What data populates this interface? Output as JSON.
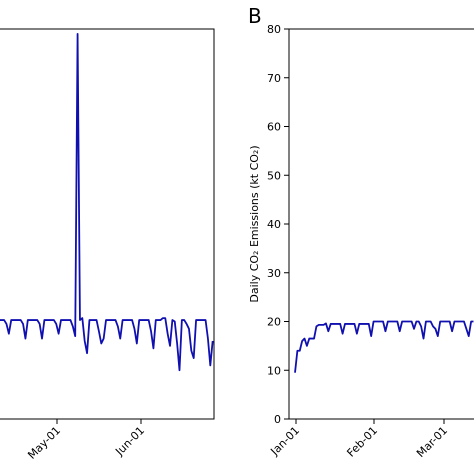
{
  "chart_data": [
    {
      "type": "line",
      "panel_label": "",
      "ylabel": "",
      "x_ticks": [
        "May-01",
        "Jun-01"
      ],
      "ylim": [
        0,
        80
      ],
      "grid": false,
      "color": "#1010b0",
      "series": [
        {
          "values": [
            20.3,
            20.3,
            20.3,
            20.3,
            19.5,
            17.5,
            20.3,
            20.3,
            20.3,
            20.3,
            20.3,
            19.5,
            16.5,
            20.3,
            20.3,
            20.3,
            20.3,
            20.3,
            19.5,
            16.5,
            20.3,
            20.3,
            20.3,
            20.3,
            20.3,
            19.5,
            17.5,
            20.3,
            20.3,
            20.3,
            20.3,
            20.3,
            19.0,
            17.0,
            79.0,
            20.3,
            20.7,
            16.0,
            13.5,
            20.3,
            20.3,
            20.3,
            20.3,
            18.0,
            15.5,
            16.5,
            20.3,
            20.3,
            20.3,
            20.3,
            20.3,
            19.0,
            16.5,
            20.3,
            20.3,
            20.3,
            20.3,
            20.3,
            18.5,
            15.5,
            20.3,
            20.3,
            20.3,
            20.3,
            20.3,
            18.0,
            14.5,
            20.3,
            20.3,
            20.3,
            20.7,
            20.7,
            17.5,
            15.0,
            20.3,
            20.0,
            15.5,
            10.0,
            20.3,
            20.3,
            19.5,
            18.5,
            14.0,
            12.5,
            20.3,
            20.3,
            20.3,
            20.3,
            20.3,
            16.5,
            11.0,
            16.0
          ]
        }
      ]
    },
    {
      "type": "line",
      "panel_label": "B",
      "ylabel": "Daily CO₂ Emissions (kt CO₂)",
      "x_ticks": [
        "Jan-01",
        "Feb-01",
        "Mar-01"
      ],
      "ylim": [
        0,
        80
      ],
      "y_ticks": [
        "0",
        "10",
        "20",
        "30",
        "40",
        "50",
        "60",
        "70",
        "80"
      ],
      "grid": false,
      "color": "#1010b0",
      "series": [
        {
          "values": [
            9.5,
            14.0,
            14.0,
            16.0,
            16.5,
            15.0,
            16.5,
            16.5,
            16.5,
            19.0,
            19.3,
            19.3,
            19.3,
            19.6,
            18.0,
            19.5,
            19.5,
            19.5,
            19.5,
            19.5,
            17.5,
            19.5,
            19.5,
            19.5,
            19.5,
            19.5,
            17.5,
            19.5,
            19.5,
            19.5,
            19.5,
            19.5,
            17.0,
            20.0,
            20.0,
            20.0,
            20.0,
            20.0,
            18.0,
            20.0,
            20.0,
            20.0,
            20.0,
            20.0,
            18.0,
            20.0,
            20.0,
            20.0,
            20.0,
            20.0,
            18.5,
            20.0,
            20.0,
            19.0,
            16.5,
            20.0,
            20.0,
            20.0,
            19.0,
            18.5,
            17.0,
            20.0,
            20.0,
            20.0,
            20.0,
            20.0,
            18.0,
            20.0,
            20.0,
            20.0,
            20.0,
            20.0,
            18.5,
            17.0,
            20.0,
            20.0
          ]
        }
      ]
    }
  ]
}
